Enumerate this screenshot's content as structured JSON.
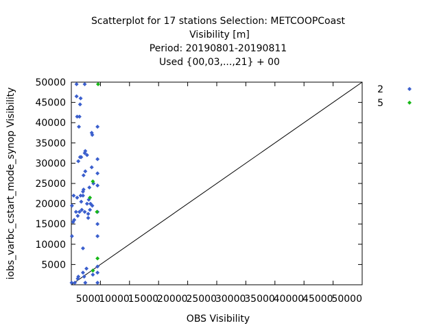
{
  "chart_data": {
    "type": "scatter",
    "title_lines": [
      "Scatterplot for   17 stations Selection: METCOOPCoast",
      "Visibility [m]",
      "Period: 20190801-20190811",
      "Used {00,03,...,21} + 00"
    ],
    "xlabel": "OBS Visibility",
    "ylabel": "iobs_varbc_cstart_mode_synop Visibility",
    "xlim": [
      0,
      50000
    ],
    "ylim": [
      0,
      50000
    ],
    "x_ticks": [
      "5000",
      "10000",
      "15000",
      "20000",
      "25000",
      "30000",
      "35000",
      "40000",
      "45000",
      "50000"
    ],
    "y_ticks": [
      "5000",
      "10000",
      "15000",
      "20000",
      "25000",
      "30000",
      "35000",
      "40000",
      "45000",
      "50000"
    ],
    "grid": false,
    "legend_position": "right",
    "diagonal": true,
    "colors": {
      "series_2": "#3b5fcd",
      "series_5": "#17b817",
      "diagonal": "#000000"
    },
    "series": [
      {
        "name": "2",
        "color": "#3b5fcd",
        "points": [
          [
            50,
            500
          ],
          [
            100,
            12000
          ],
          [
            100,
            19500
          ],
          [
            300,
            15500
          ],
          [
            400,
            22000
          ],
          [
            500,
            16000
          ],
          [
            600,
            500
          ],
          [
            800,
            18000
          ],
          [
            900,
            46500
          ],
          [
            900,
            49500
          ],
          [
            1000,
            41500
          ],
          [
            1000,
            21500
          ],
          [
            1100,
            17000
          ],
          [
            1100,
            1500
          ],
          [
            1200,
            2000
          ],
          [
            1200,
            30500
          ],
          [
            1300,
            39000
          ],
          [
            1400,
            18000
          ],
          [
            1400,
            41500
          ],
          [
            1500,
            31500
          ],
          [
            1500,
            44500
          ],
          [
            1600,
            46000
          ],
          [
            1600,
            22000
          ],
          [
            1700,
            20500
          ],
          [
            1700,
            31500
          ],
          [
            1800,
            18500
          ],
          [
            2000,
            9000
          ],
          [
            2000,
            22000
          ],
          [
            2000,
            23000
          ],
          [
            2000,
            3000
          ],
          [
            2100,
            27000
          ],
          [
            2100,
            23500
          ],
          [
            2200,
            2000
          ],
          [
            2300,
            18000
          ],
          [
            2300,
            32500
          ],
          [
            2300,
            49500
          ],
          [
            2400,
            33000
          ],
          [
            2400,
            28000
          ],
          [
            2400,
            500
          ],
          [
            2600,
            4000
          ],
          [
            2700,
            20000
          ],
          [
            2700,
            32000
          ],
          [
            2900,
            17500
          ],
          [
            2900,
            16500
          ],
          [
            3000,
            21000
          ],
          [
            3100,
            24000
          ],
          [
            3200,
            18500
          ],
          [
            3300,
            20000
          ],
          [
            3500,
            29000
          ],
          [
            3500,
            37500
          ],
          [
            3600,
            37000
          ],
          [
            3600,
            19500
          ],
          [
            3700,
            3500
          ],
          [
            3700,
            2500
          ],
          [
            3800,
            25000
          ],
          [
            4500,
            39000
          ],
          [
            4500,
            500
          ],
          [
            4500,
            3000
          ],
          [
            4500,
            12000
          ],
          [
            4500,
            15000
          ],
          [
            4500,
            18000
          ],
          [
            4500,
            24500
          ],
          [
            4500,
            27500
          ],
          [
            4500,
            31000
          ],
          [
            4500,
            4500
          ]
        ]
      },
      {
        "name": "5",
        "color": "#17b817",
        "points": [
          [
            3200,
            21500
          ],
          [
            3700,
            3500
          ],
          [
            3700,
            25500
          ],
          [
            4400,
            18000
          ],
          [
            4500,
            6500
          ],
          [
            4600,
            49500
          ]
        ]
      }
    ]
  }
}
